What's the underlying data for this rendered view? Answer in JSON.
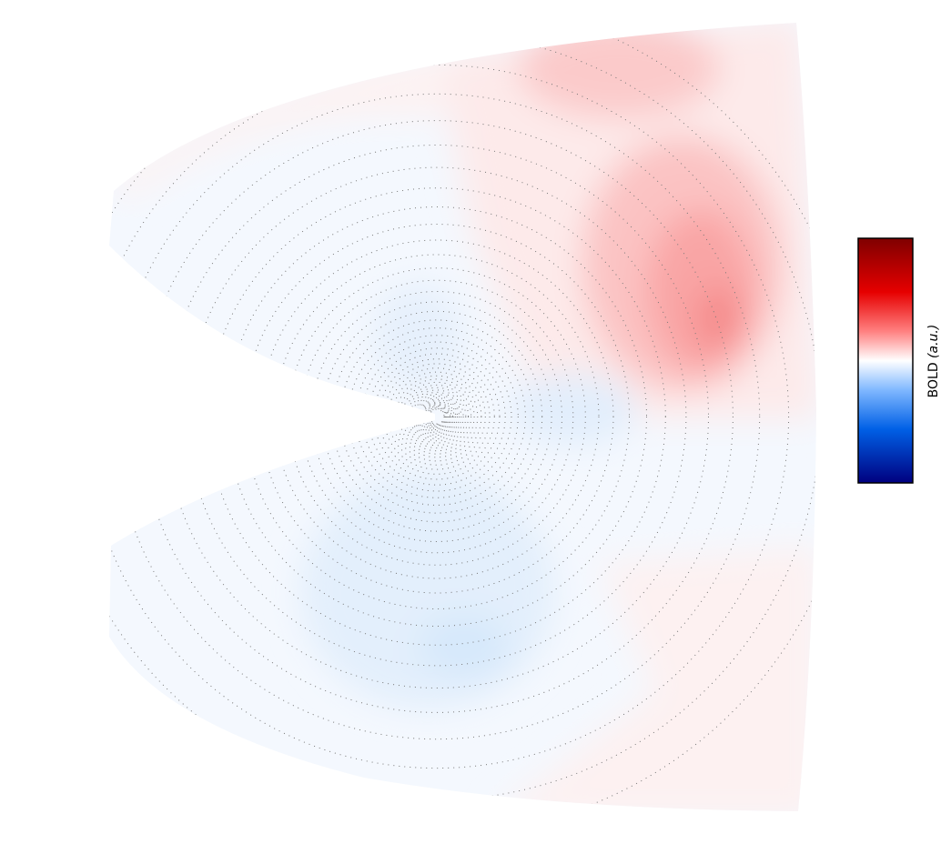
{
  "colorbar": {
    "label": "BOLD",
    "unit": "(a.u.)"
  }
}
